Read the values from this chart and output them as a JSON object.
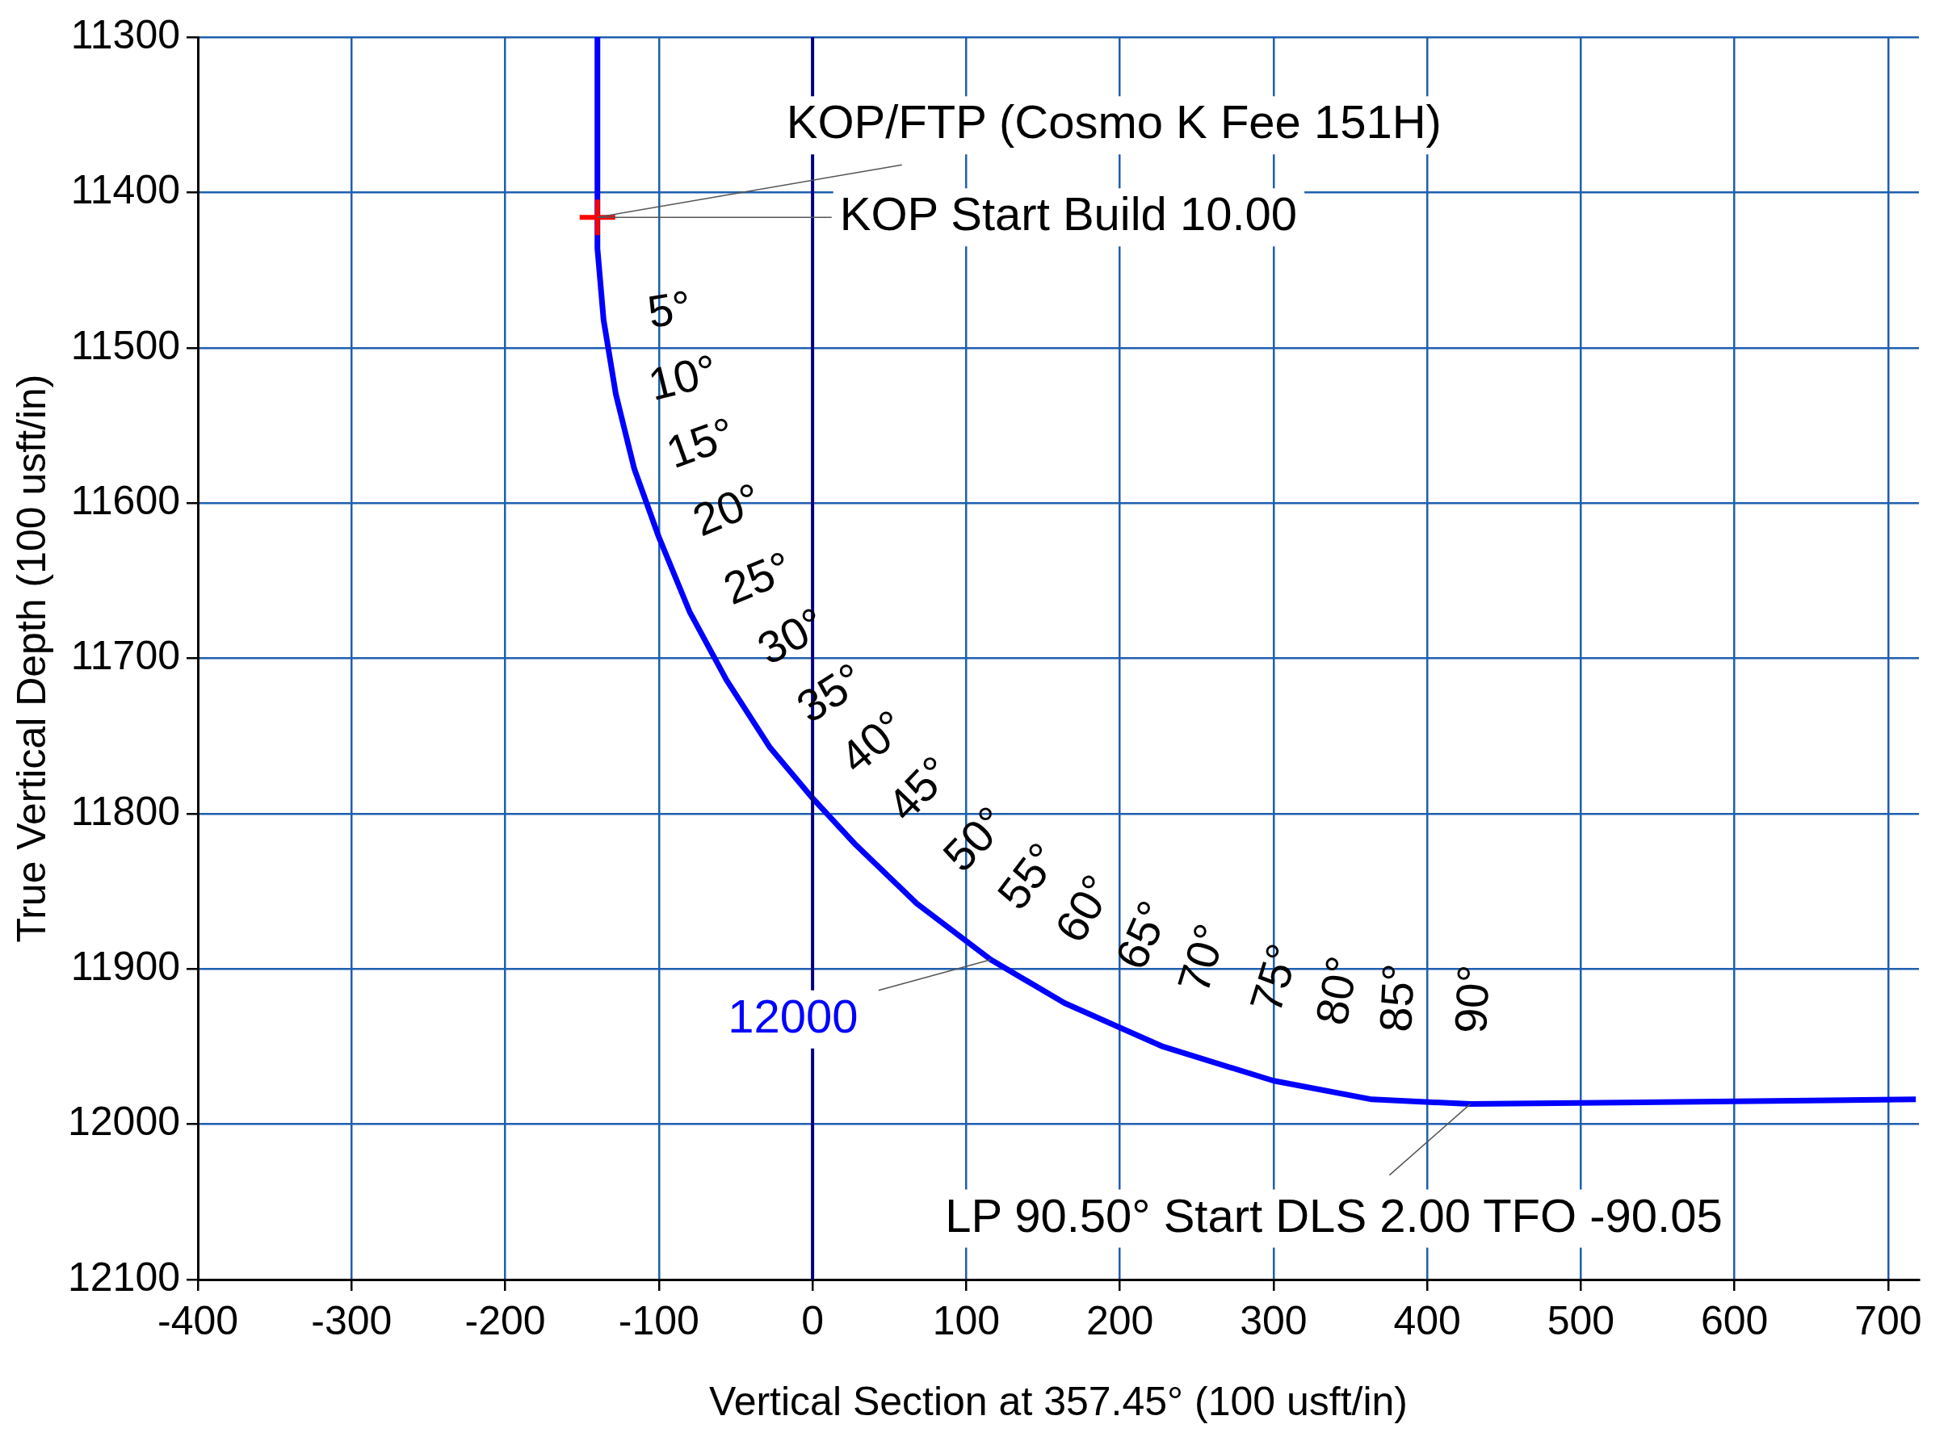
{
  "chart_data": {
    "type": "line",
    "xlabel": "Vertical Section at 357.45° (100 usft/in)",
    "ylabel": "True Vertical Depth (100 usft/in)",
    "xlim": [
      -400,
      720
    ],
    "xticks": [
      -400,
      -300,
      -200,
      -100,
      0,
      100,
      200,
      300,
      400,
      500,
      600,
      700
    ],
    "ylim": [
      12100,
      11300
    ],
    "yticks": [
      11300,
      11400,
      11500,
      11600,
      11700,
      11800,
      11900,
      12000,
      12100
    ],
    "grid": true,
    "series": [
      {
        "color": "#0000ff",
        "x": [
          -140,
          -140,
          -136,
          -128,
          -116,
          -100,
          -80,
          -56,
          -28,
          0,
          28,
          68,
          116,
          164,
          228,
          300,
          364,
          428,
          718
        ],
        "values": [
          11300,
          11436,
          11482,
          11530,
          11578,
          11622,
          11670,
          11714,
          11757,
          11790,
          11820,
          11858,
          11894,
          11922,
          11950,
          11972,
          11984,
          11987,
          11984
        ]
      },
      {
        "type": "scatter",
        "color": "#ff0000",
        "marker": "cross",
        "x": [
          -140
        ],
        "values": [
          11416
        ]
      }
    ],
    "ref_lines": [
      {
        "axis": "x",
        "value": 0,
        "color": "#000080"
      }
    ],
    "annotations": [
      {
        "text": "KOP/FTP (Cosmo K Fee 151H)",
        "x": -140,
        "y": 11416
      },
      {
        "text": "KOP Start Build 10.00",
        "x": -140,
        "y": 11416
      },
      {
        "text": "12000",
        "x": 116,
        "y": 11894
      },
      {
        "text": "LP 90.50° Start DLS 2.00 TFO -90.05",
        "x": 428,
        "y": 11987
      },
      "5°",
      "10°",
      "15°",
      "20°",
      "25°",
      "30°",
      "35°",
      "40°",
      "45°",
      "50°",
      "55°",
      "60°",
      "65°",
      "70°",
      "75°",
      "80°",
      "85°",
      "90°"
    ]
  }
}
